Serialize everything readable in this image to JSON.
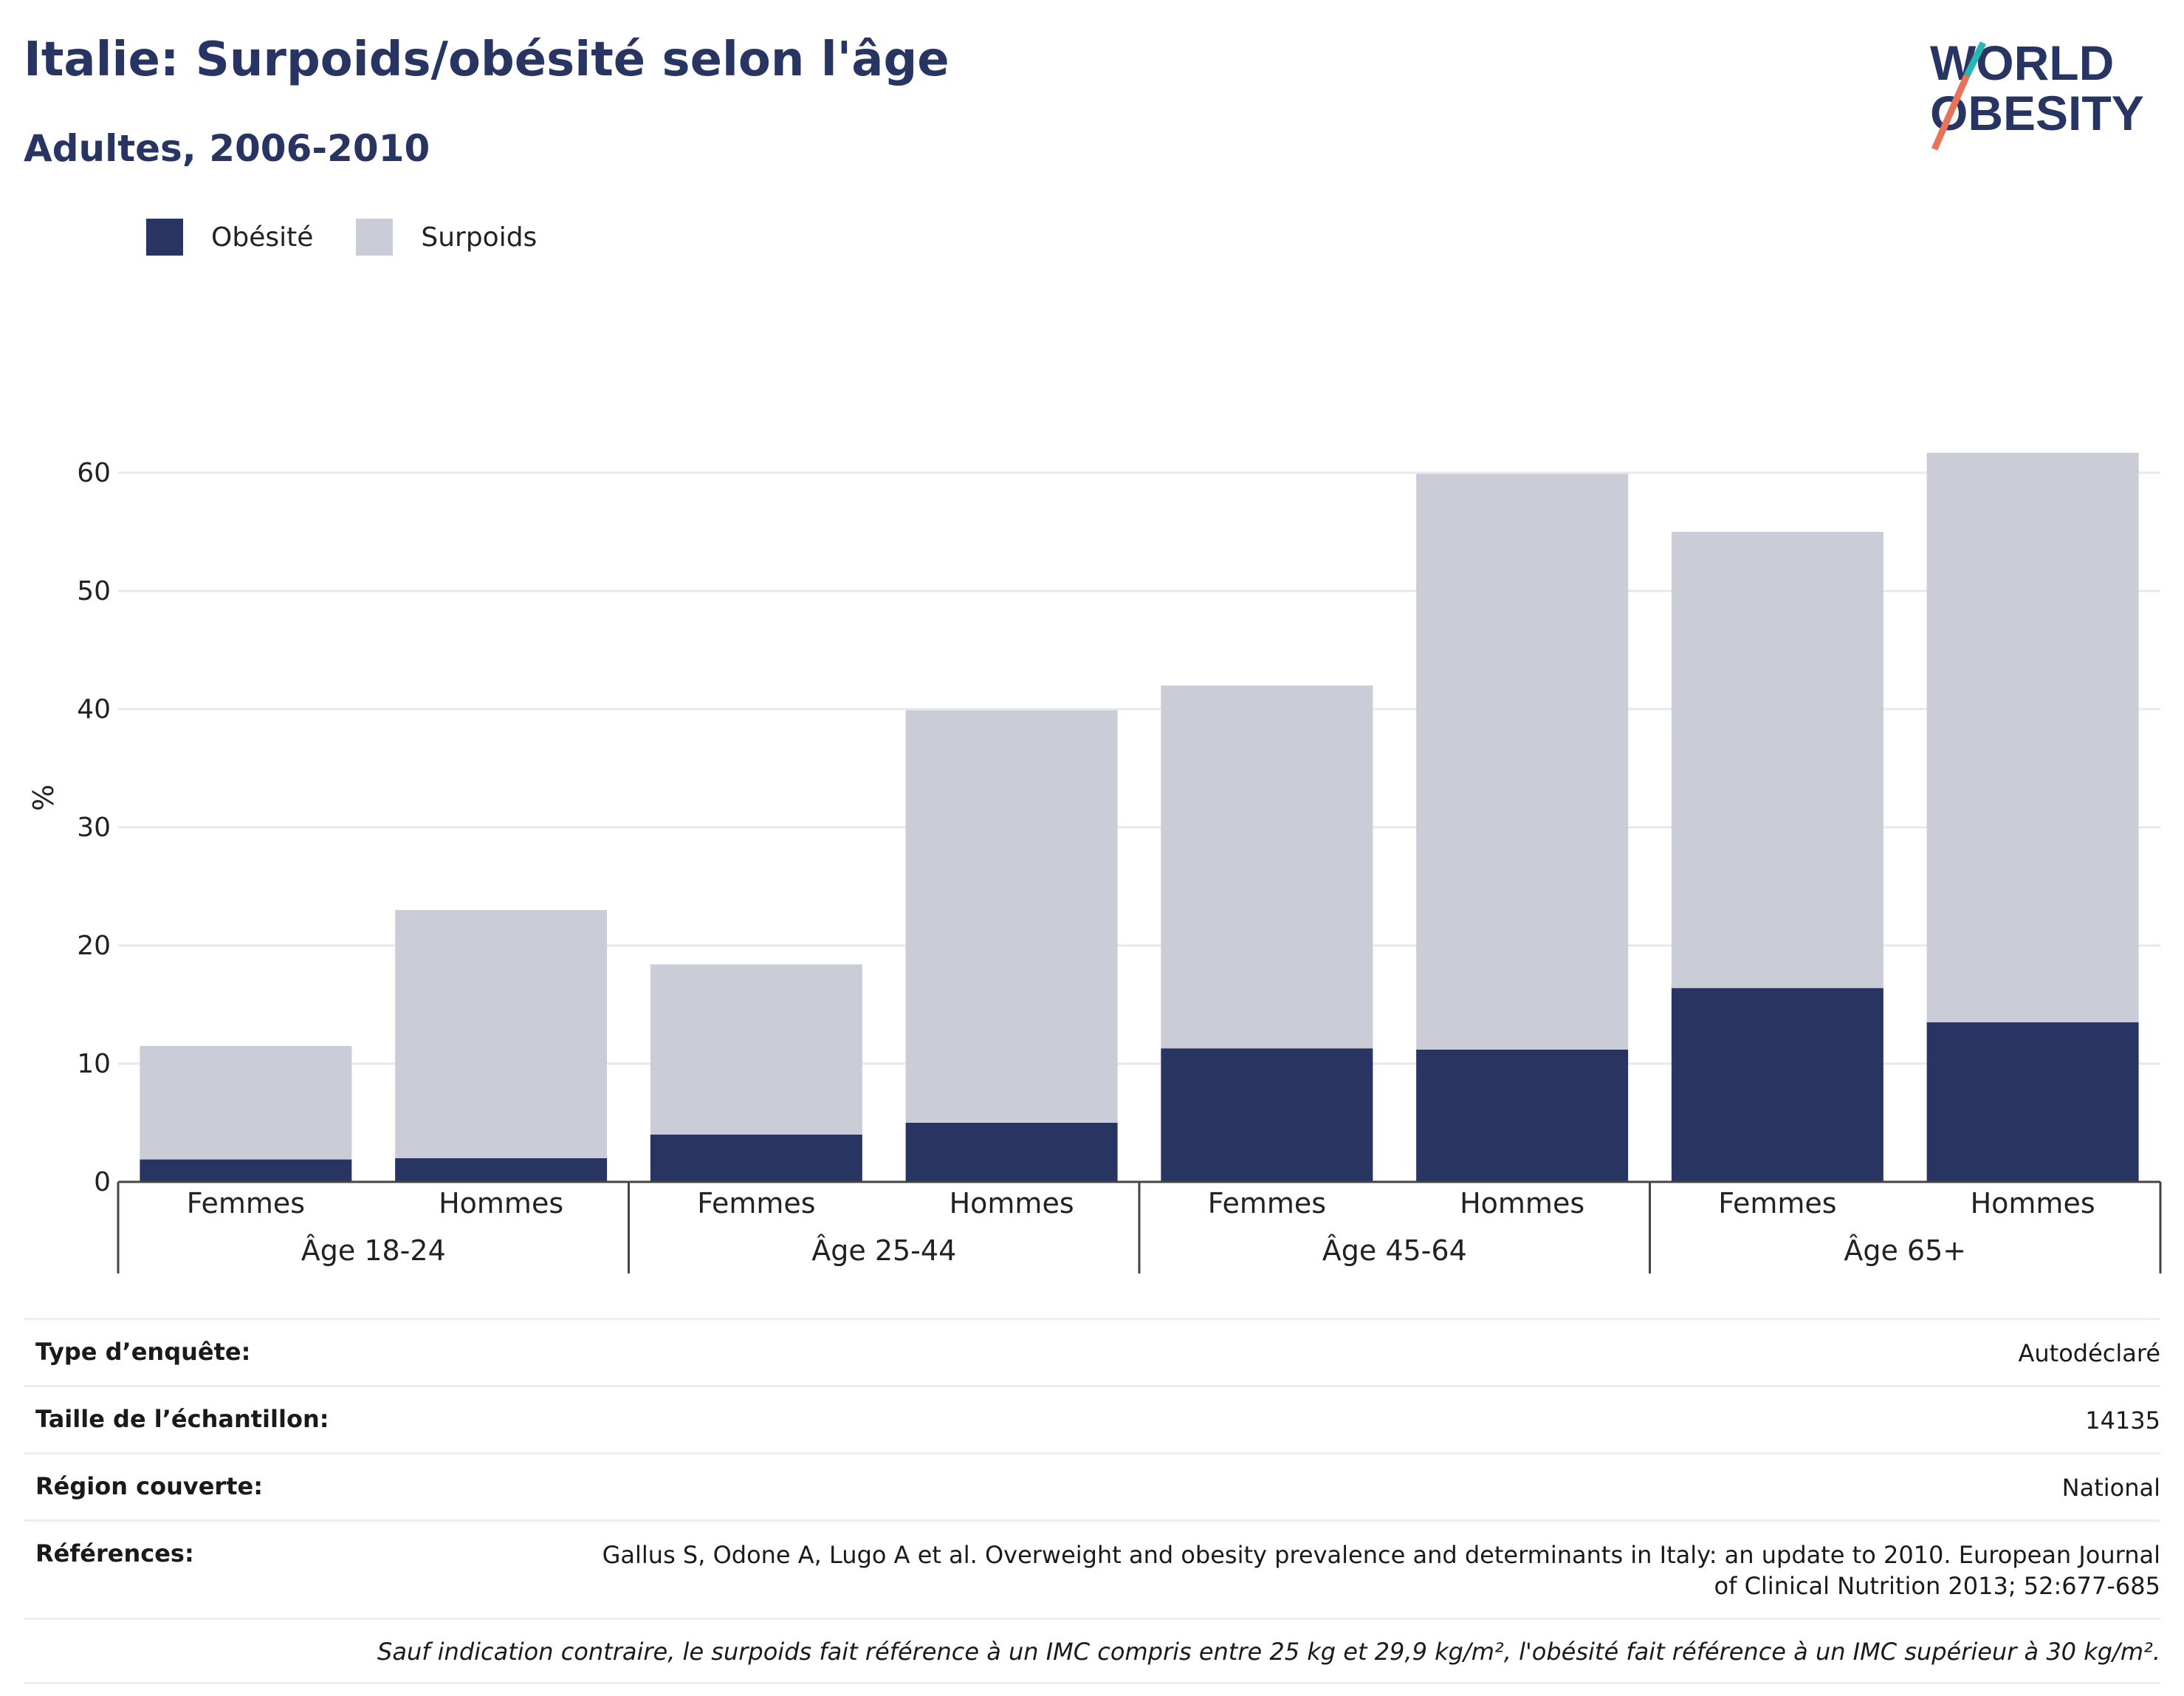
{
  "title": "Italie: Surpoids/obésité selon l'âge",
  "subtitle": "Adultes, 2006-2010",
  "logo": {
    "line1": "WORLD",
    "line2": "OBESITY",
    "icon": "world-obesity-logo"
  },
  "colors": {
    "obesite": "#283563",
    "surpoids": "#cacdd8",
    "text": "#283563",
    "grid": "#e6e8ef"
  },
  "legend": [
    {
      "label": "Obésité",
      "color": "#283563"
    },
    {
      "label": "Surpoids",
      "color": "#cacdd8"
    }
  ],
  "chart_data": {
    "type": "bar",
    "stacked": true,
    "ylabel": "%",
    "ylim": [
      0,
      65
    ],
    "yticks": [
      0,
      10,
      20,
      30,
      40,
      50,
      60
    ],
    "grid": true,
    "legend_position": "top-left",
    "groups": [
      "Âge 18-24",
      "Âge 25-44",
      "Âge 45-64",
      "Âge 65+"
    ],
    "categories": [
      "Femmes",
      "Hommes",
      "Femmes",
      "Hommes",
      "Femmes",
      "Hommes",
      "Femmes",
      "Hommes"
    ],
    "series": [
      {
        "name": "Obésité",
        "values": [
          1.9,
          2.0,
          4.0,
          5.0,
          11.3,
          11.2,
          16.4,
          13.5
        ]
      },
      {
        "name": "Surpoids",
        "values": [
          9.6,
          21.0,
          14.4,
          34.9,
          30.7,
          48.7,
          38.6,
          48.2
        ]
      }
    ]
  },
  "info": [
    {
      "label": "Type d’enquête:",
      "value": "Autodéclaré"
    },
    {
      "label": "Taille de l’échantillon:",
      "value": "14135"
    },
    {
      "label": "Région couverte:",
      "value": "National"
    },
    {
      "label": "Références:",
      "value": "Gallus S, Odone A, Lugo A et al. Overweight and obesity prevalence and determinants in Italy: an update to 2010. European Journal of Clinical Nutrition 2013; 52:677-685"
    }
  ],
  "note": "Sauf indication contraire, le surpoids fait référence à un IMC compris entre 25 kg et 29,9 kg/m², l'obésité fait référence à un IMC supérieur à 30 kg/m²."
}
